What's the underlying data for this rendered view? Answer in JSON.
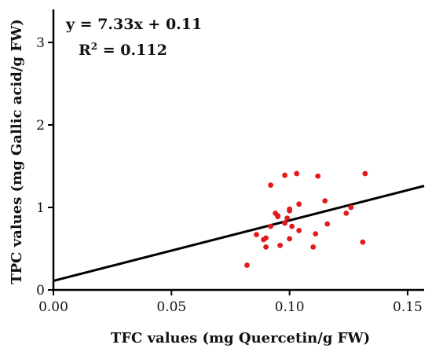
{
  "chart_data": {
    "type": "scatter",
    "xlabel": "TFC values (mg Quercetin/g FW)",
    "ylabel": "TPC values (mg Gallic acid/g FW)",
    "xlim": [
      0,
      0.157
    ],
    "ylim": [
      0,
      3.4
    ],
    "xticks": [
      0.0,
      0.05,
      0.1,
      0.15
    ],
    "xtick_labels": [
      "0.00",
      "0.05",
      "0.10",
      "0.15"
    ],
    "yticks": [
      0,
      1,
      2,
      3
    ],
    "ytick_labels": [
      "0",
      "1",
      "2",
      "3"
    ],
    "grid": false,
    "annotations": {
      "equation": "y = 7.33x + 0.11",
      "r2_label": "R",
      "r2_sup": "2",
      "r2_value": " = 0.112"
    },
    "trendline": {
      "slope": 7.33,
      "intercept": 0.11
    },
    "point_color": "#e41a1c",
    "line_color": "#000000",
    "series": [
      {
        "points": [
          [
            0.082,
            0.3
          ],
          [
            0.086,
            0.67
          ],
          [
            0.089,
            0.61
          ],
          [
            0.09,
            0.52
          ],
          [
            0.09,
            0.63
          ],
          [
            0.092,
            1.27
          ],
          [
            0.092,
            0.77
          ],
          [
            0.094,
            0.93
          ],
          [
            0.095,
            0.89
          ],
          [
            0.095,
            0.9
          ],
          [
            0.096,
            0.54
          ],
          [
            0.098,
            1.39
          ],
          [
            0.098,
            0.81
          ],
          [
            0.099,
            0.87
          ],
          [
            0.1,
            0.98
          ],
          [
            0.1,
            0.96
          ],
          [
            0.1,
            0.62
          ],
          [
            0.101,
            0.77
          ],
          [
            0.103,
            1.41
          ],
          [
            0.104,
            0.72
          ],
          [
            0.104,
            1.04
          ],
          [
            0.11,
            0.52
          ],
          [
            0.111,
            0.68
          ],
          [
            0.112,
            1.38
          ],
          [
            0.115,
            1.08
          ],
          [
            0.116,
            0.8
          ],
          [
            0.124,
            0.93
          ],
          [
            0.126,
            1.0
          ],
          [
            0.131,
            0.58
          ],
          [
            0.132,
            1.41
          ]
        ]
      }
    ]
  }
}
